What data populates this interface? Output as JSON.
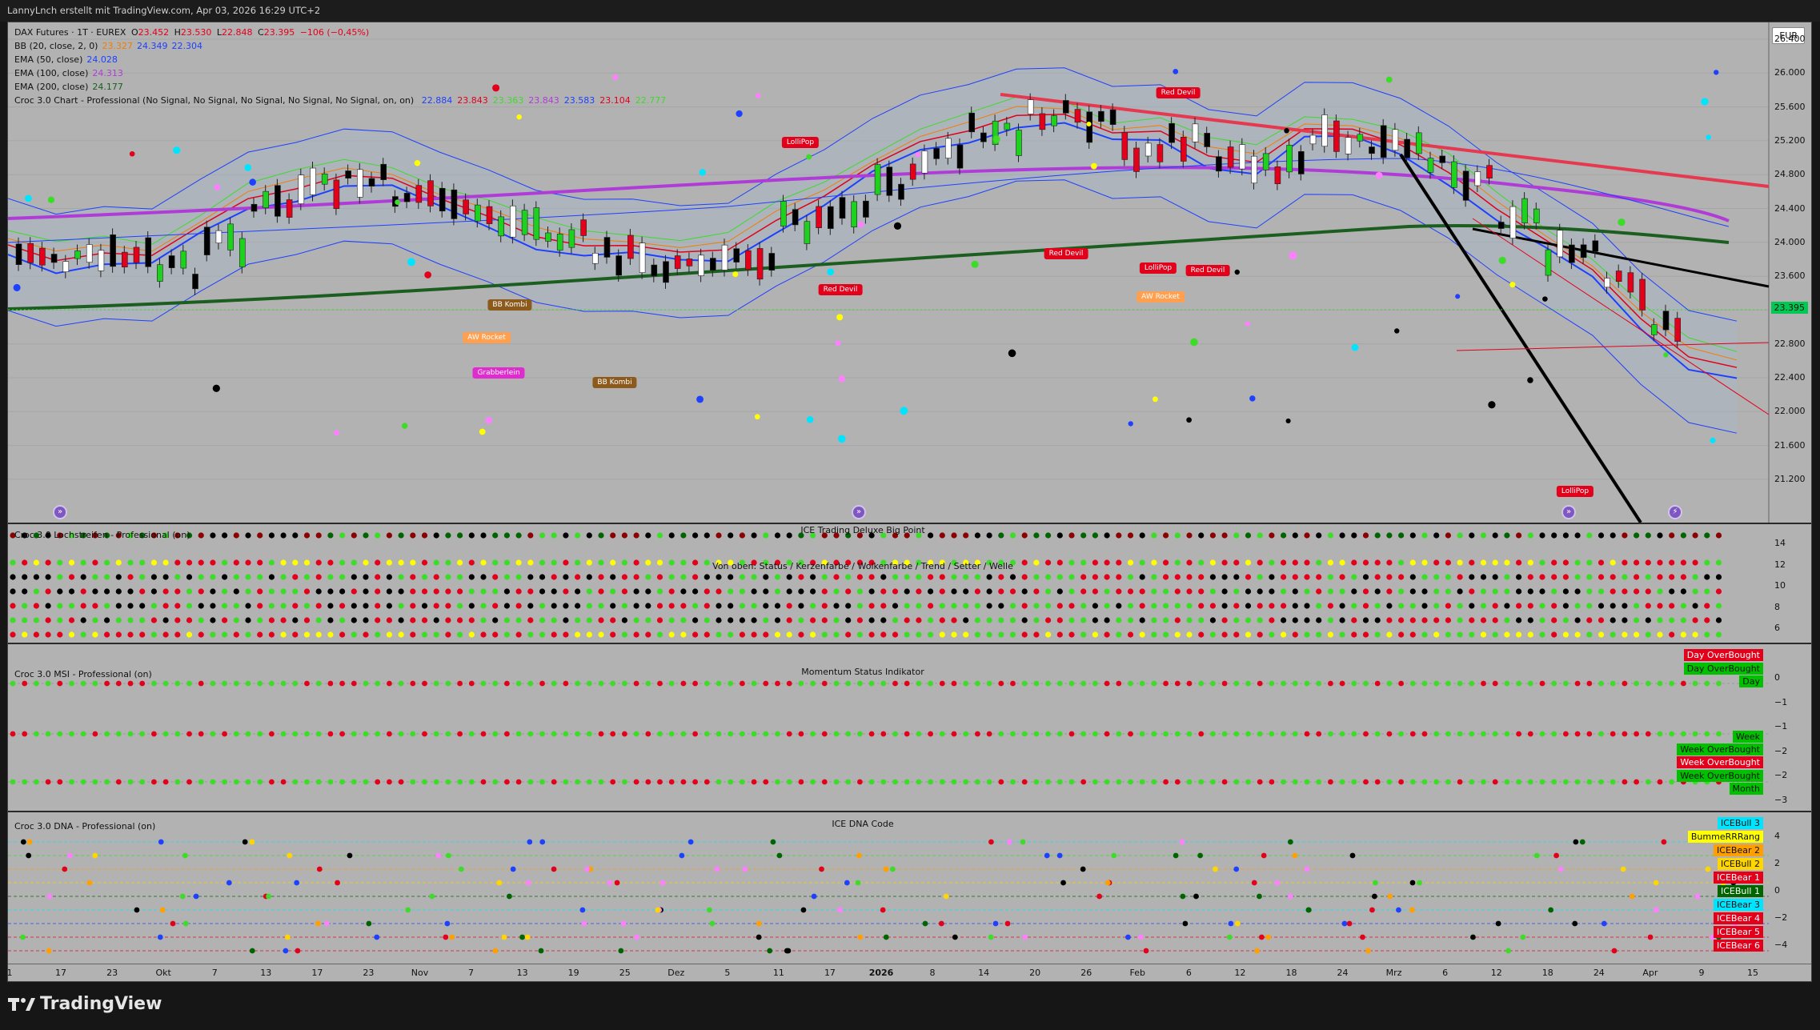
{
  "header": {
    "credit": "LannyLnch erstellt mit TradingView.com, Apr 03, 2026 16:29 UTC+2"
  },
  "main_pane": {
    "symbol_line": {
      "name": "DAX Futures · 1T · EUREX",
      "o_label": "O",
      "o": "23.452",
      "h_label": "H",
      "h": "23.530",
      "l_label": "L",
      "l": "22.848",
      "c_label": "C",
      "c": "23.395",
      "change": "−106 (−0,45%)"
    },
    "indicators": [
      {
        "label": "BB (20, close, 2, 0)",
        "values": [
          "23.327",
          "24.349",
          "22.304"
        ],
        "colors": [
          "#f57c00",
          "#1e40ff",
          "#1e40ff"
        ]
      },
      {
        "label": "EMA (50, close)",
        "values": [
          "24.028"
        ],
        "colors": [
          "#1e40ff"
        ]
      },
      {
        "label": "EMA (100, close)",
        "values": [
          "24.313"
        ],
        "colors": [
          "#b03cd8"
        ]
      },
      {
        "label": "EMA (200, close)",
        "values": [
          "24.177"
        ],
        "colors": [
          "#1b5e20"
        ]
      }
    ],
    "croc_line": {
      "label": "Croc 3.0 Chart - Professional (No Signal, No Signal, No Signal, No Signal, No Signal, on, on)",
      "values": [
        "22.884",
        "23.843",
        "23.363",
        "23.843",
        "23.583",
        "23.104",
        "22.777"
      ],
      "colors": [
        "#1e40ff",
        "#e2001a",
        "#3cdc28",
        "#b03cd8",
        "#1e40ff",
        "#e2001a",
        "#3cdc28"
      ]
    },
    "currency": "EUR",
    "last_price": "23.395",
    "y_ticks": [
      "26.400",
      "26.000",
      "25.600",
      "25.200",
      "24.800",
      "24.400",
      "24.000",
      "23.600",
      "23.200",
      "22.800",
      "22.400",
      "22.000",
      "21.600",
      "21.200"
    ],
    "signal_tags": [
      {
        "text": "Red Devil",
        "color": "red"
      },
      {
        "text": "LolliPop",
        "color": "red"
      },
      {
        "text": "Red Devil",
        "color": "red"
      },
      {
        "text": "Red Devil",
        "color": "red"
      },
      {
        "text": "LolliPop",
        "color": "red"
      },
      {
        "text": "Red Devil",
        "color": "red"
      },
      {
        "text": "LolliPop",
        "color": "red"
      },
      {
        "text": "BB Kombi",
        "color": "brown"
      },
      {
        "text": "BB Kombi",
        "color": "brown"
      },
      {
        "text": "AW Rocket",
        "color": "orange"
      },
      {
        "text": "AW Rocket",
        "color": "orange"
      },
      {
        "text": "Grabberlein",
        "color": "magenta"
      }
    ]
  },
  "pane_lochstreifen": {
    "title": "Croc 3.0 Lochstreifen - Professional (on)",
    "center_title": "ICE Trading Deluxe Big Point",
    "subtitle": "Von oben: Status / Kerzenfarbe / Wolkenfarbe / Trend / Setter / Welle",
    "y_ticks": [
      "14",
      "12",
      "10",
      "8",
      "6"
    ]
  },
  "pane_msi": {
    "title": "Croc 3.0 MSI - Professional (on)",
    "center_title": "Momentum Status Indikator",
    "y_ticks": [
      "0",
      "−1",
      "−1",
      "−2",
      "−2",
      "−3"
    ],
    "badges": [
      {
        "text": "Day OverBought",
        "bg": "#e2001a",
        "fg": "#ffffff"
      },
      {
        "text": "Day OverBought",
        "bg": "#00c000",
        "fg": "#111111"
      },
      {
        "text": "Day",
        "bg": "#00c000",
        "fg": "#111111"
      },
      {
        "text": "Week",
        "bg": "#00c000",
        "fg": "#111111"
      },
      {
        "text": "Week OverBought",
        "bg": "#00c000",
        "fg": "#111111"
      },
      {
        "text": "Week OverBought",
        "bg": "#e2001a",
        "fg": "#ffffff"
      },
      {
        "text": "Week OverBought",
        "bg": "#00c000",
        "fg": "#111111"
      },
      {
        "text": "Month",
        "bg": "#00c000",
        "fg": "#111111"
      }
    ]
  },
  "pane_dna": {
    "title": "Croc 3.0 DNA - Professional (on)",
    "center_title": "ICE DNA Code",
    "y_ticks": [
      "4",
      "2",
      "0",
      "−2",
      "−4"
    ],
    "badges": [
      {
        "text": "ICEBull 3",
        "bg": "#00e5ff",
        "fg": "#111111"
      },
      {
        "text": "BummeRRRang",
        "bg": "#ffff00",
        "fg": "#111111"
      },
      {
        "text": "ICEBear 2",
        "bg": "#ffa000",
        "fg": "#111111"
      },
      {
        "text": "ICEBull 2",
        "bg": "#ffd600",
        "fg": "#111111"
      },
      {
        "text": "ICEBear 1",
        "bg": "#e2001a",
        "fg": "#ffffff"
      },
      {
        "text": "ICEBull 1",
        "bg": "#006400",
        "fg": "#ffffff"
      },
      {
        "text": "ICEBear 3",
        "bg": "#00e5ff",
        "fg": "#111111"
      },
      {
        "text": "ICEBear 4",
        "bg": "#e2001a",
        "fg": "#ffffff"
      },
      {
        "text": "ICEBear 5",
        "bg": "#e2001a",
        "fg": "#ffffff"
      },
      {
        "text": "ICEBear 6",
        "bg": "#e2001a",
        "fg": "#ffffff"
      }
    ]
  },
  "x_axis": {
    "labels": [
      "1",
      "17",
      "23",
      "Okt",
      "7",
      "13",
      "17",
      "23",
      "Nov",
      "7",
      "13",
      "19",
      "25",
      "Dez",
      "5",
      "11",
      "17",
      "2026",
      "8",
      "14",
      "20",
      "26",
      "Feb",
      "6",
      "12",
      "18",
      "24",
      "Mrz",
      "6",
      "12",
      "18",
      "24",
      "Apr",
      "9",
      "15"
    ]
  },
  "footer": {
    "brand": "TradingView"
  }
}
